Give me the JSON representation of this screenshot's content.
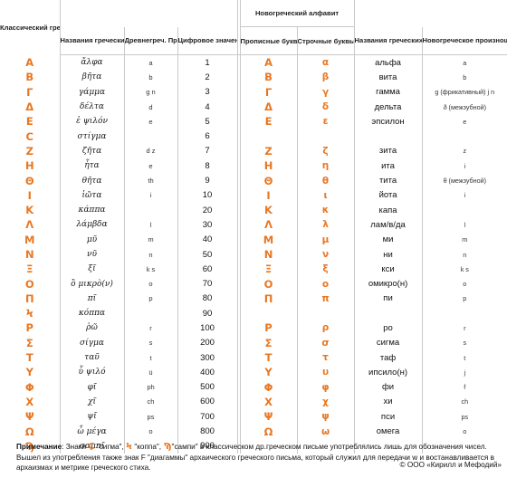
{
  "headers": {
    "classical": "Классический греческий алфавит",
    "modern_group": "Новогреческий алфавит",
    "names": "Названия греческих букв",
    "ancient_pron": "Древнегреч. Произношение",
    "numeric": "Цифровое значение",
    "capital": "Прописные буквы",
    "lower": "Строчные буквы",
    "modern_names": "Названия греческих букв",
    "modern_pron": "Новогреческое произношение"
  },
  "rows": [
    {
      "cl": "Α",
      "name": "ἄλφα",
      "pron": "a",
      "num": "1",
      "cap": "Α",
      "low": "α",
      "mname": "альфа",
      "mpron": "a"
    },
    {
      "cl": "Β",
      "name": "βῆτα",
      "pron": "b",
      "num": "2",
      "cap": "Β",
      "low": "β",
      "mname": "вита",
      "mpron": "b"
    },
    {
      "cl": "Γ",
      "name": "γάμμα",
      "pron": "g n",
      "num": "3",
      "cap": "Γ",
      "low": "γ",
      "mname": "гамма",
      "mpron": "g (фрикативный) j n"
    },
    {
      "cl": "Δ",
      "name": "δέλτα",
      "pron": "d",
      "num": "4",
      "cap": "Δ",
      "low": "δ",
      "mname": "дельта",
      "mpron": "ð (межзубной)"
    },
    {
      "cl": "Ε",
      "name": "ἐ ψιλόν",
      "pron": "e",
      "num": "5",
      "cap": "Ε",
      "low": "ε",
      "mname": "эпсилон",
      "mpron": "e"
    },
    {
      "cl": "Ϲ",
      "name": "στίγμα",
      "pron": "",
      "num": "6",
      "cap": "",
      "low": "",
      "mname": "",
      "mpron": ""
    },
    {
      "cl": "Ζ",
      "name": "ζῆτα",
      "pron": "d z",
      "num": "7",
      "cap": "Ζ",
      "low": "ζ",
      "mname": "зита",
      "mpron": "z"
    },
    {
      "cl": "Η",
      "name": "ἦτα",
      "pron": "e",
      "num": "8",
      "cap": "Η",
      "low": "η",
      "mname": "ита",
      "mpron": "i"
    },
    {
      "cl": "Θ",
      "name": "θῆτα",
      "pron": "th",
      "num": "9",
      "cap": "Θ",
      "low": "θ",
      "mname": "тита",
      "mpron": "θ (межзубной)"
    },
    {
      "cl": "Ι",
      "name": "ἰῶτα",
      "pron": "i",
      "num": "10",
      "cap": "Ι",
      "low": "ι",
      "mname": "йота",
      "mpron": "i"
    },
    {
      "cl": "Κ",
      "name": "κάππα",
      "pron": "",
      "num": "20",
      "cap": "Κ",
      "low": "κ",
      "mname": "капа",
      "mpron": ""
    },
    {
      "cl": "Λ",
      "name": "λάμβδα",
      "pron": "l",
      "num": "30",
      "cap": "Λ",
      "low": "λ",
      "mname": "лам/в/да",
      "mpron": "l"
    },
    {
      "cl": "Μ",
      "name": "μῦ",
      "pron": "m",
      "num": "40",
      "cap": "Μ",
      "low": "μ",
      "mname": "ми",
      "mpron": "m"
    },
    {
      "cl": "Ν",
      "name": "νῦ",
      "pron": "n",
      "num": "50",
      "cap": "Ν",
      "low": "ν",
      "mname": "ни",
      "mpron": "n"
    },
    {
      "cl": "Ξ",
      "name": "ξῖ",
      "pron": "k s",
      "num": "60",
      "cap": "Ξ",
      "low": "ξ",
      "mname": "кси",
      "mpron": "k s"
    },
    {
      "cl": "Ο",
      "name": "ὂ μικρὸ(ν)",
      "pron": "o",
      "num": "70",
      "cap": "Ο",
      "low": "ο",
      "mname": "омикро(н)",
      "mpron": "o"
    },
    {
      "cl": "Π",
      "name": "πῖ",
      "pron": "p",
      "num": "80",
      "cap": "Π",
      "low": "π",
      "mname": "пи",
      "mpron": "p"
    },
    {
      "cl": "Ϟ",
      "name": "κόππα",
      "pron": "",
      "num": "90",
      "cap": "",
      "low": "",
      "mname": "",
      "mpron": ""
    },
    {
      "cl": "Ρ",
      "name": "ῥῶ",
      "pron": "r",
      "num": "100",
      "cap": "Ρ",
      "low": "ρ",
      "mname": "ро",
      "mpron": "r"
    },
    {
      "cl": "Σ",
      "name": "σίγμα",
      "pron": "s",
      "num": "200",
      "cap": "Σ",
      "low": "σ",
      "mname": "сигма",
      "mpron": "s"
    },
    {
      "cl": "Τ",
      "name": "ταῦ",
      "pron": "t",
      "num": "300",
      "cap": "Τ",
      "low": "τ",
      "mname": "таф",
      "mpron": "t"
    },
    {
      "cl": "Υ",
      "name": "ὖ ψιλό",
      "pron": "ü",
      "num": "400",
      "cap": "Υ",
      "low": "υ",
      "mname": "ипсило(н)",
      "mpron": "j"
    },
    {
      "cl": "Φ",
      "name": "φῖ",
      "pron": "ph",
      "num": "500",
      "cap": "Φ",
      "low": "φ",
      "mname": "фи",
      "mpron": "f"
    },
    {
      "cl": "Χ",
      "name": "χῖ",
      "pron": "ch",
      "num": "600",
      "cap": "Χ",
      "low": "χ",
      "mname": "хи",
      "mpron": "ch"
    },
    {
      "cl": "Ψ",
      "name": "ψῖ",
      "pron": "ps",
      "num": "700",
      "cap": "Ψ",
      "low": "ψ",
      "mname": "пси",
      "mpron": "ps"
    },
    {
      "cl": "Ω",
      "name": "ὦ μέγα",
      "pron": "o",
      "num": "800",
      "cap": "Ω",
      "low": "ω",
      "mname": "омега",
      "mpron": "o"
    },
    {
      "cl": "Ϡ",
      "name": "σαμπῖ",
      "pron": "",
      "num": "900",
      "cap": "",
      "low": "",
      "mname": "",
      "mpron": ""
    }
  ],
  "note": {
    "label": "Примечание",
    "p1": ": Знаки ",
    "sym1": "Ϲ",
    "t1": " \"сигма\", ",
    "sym2": "Ϟ",
    "t2": " \"коппа\", ",
    "sym3": "Ϡ",
    "t3": "\"сампи\" в классическом др.греческом письме употреблялись лишь для обозначения чисел. Вышел из употребления также знак F \"диагаммы\" архаического греческого письма, который служил для передачи w и  востанавливается в архаизмах и метрике греческого стиха.",
    "copyright": "© ООО «Кирилл и Мефодий»"
  },
  "colors": {
    "accent": "#e87722",
    "grid": "#c9c9c9"
  }
}
